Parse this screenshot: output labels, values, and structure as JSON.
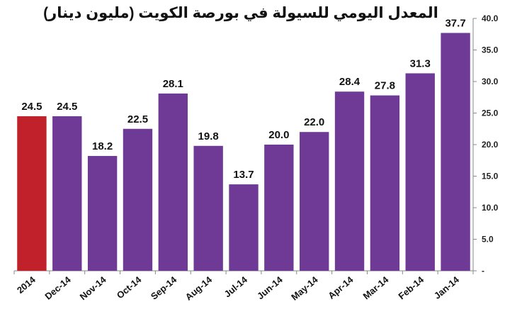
{
  "chart_data": {
    "type": "bar",
    "title": "المعدل اليومي للسيولة في بورصة الكويت (مليون دينار)",
    "xlabel": "",
    "ylabel": "",
    "categories": [
      "2014",
      "Dec-14",
      "Nov-14",
      "Oct-14",
      "Sep-14",
      "Aug-14",
      "Jul-14",
      "Jun-14",
      "May-14",
      "Apr-14",
      "Mar-14",
      "Feb-14",
      "Jan-14"
    ],
    "values": [
      24.5,
      24.5,
      18.2,
      22.5,
      28.1,
      19.8,
      13.7,
      20.0,
      22.0,
      28.4,
      27.8,
      31.3,
      37.7
    ],
    "ylim": [
      0,
      40
    ],
    "yticks": [
      "-",
      "5.0",
      "10.0",
      "15.0",
      "20.0",
      "25.0",
      "30.0",
      "35.0",
      "40.0"
    ],
    "y_axis_position": "right",
    "grid": false,
    "legend": "none",
    "colors": {
      "highlight": "#C0212A",
      "bars": "#6F3A96",
      "axis": "#888888"
    }
  }
}
